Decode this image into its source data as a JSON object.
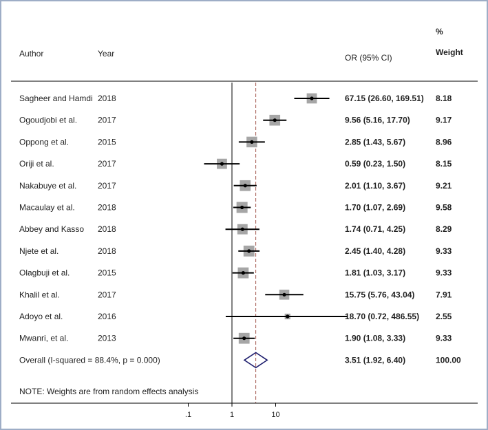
{
  "chart_data": {
    "type": "forest",
    "columns": {
      "author": "Author",
      "year": "Year",
      "or": "OR (95% CI)",
      "weight_line1": "%",
      "weight_line2": "Weight"
    },
    "x_scale": "log",
    "x_ticks": [
      0.1,
      1,
      10
    ],
    "x_tick_labels": [
      ".1",
      "1",
      "10"
    ],
    "null_line": 1,
    "pooled_line": 3.51,
    "studies": [
      {
        "author": "Sagheer and Hamdi",
        "year": "2018",
        "or": 67.15,
        "lo": 26.6,
        "hi": 169.51,
        "or_text": "67.15 (26.60, 169.51)",
        "weight": "8.18"
      },
      {
        "author": "Ogoudjobi et al.",
        "year": "2017",
        "or": 9.56,
        "lo": 5.16,
        "hi": 17.7,
        "or_text": "9.56 (5.16, 17.70)",
        "weight": "9.17"
      },
      {
        "author": "Oppong et al.",
        "year": "2015",
        "or": 2.85,
        "lo": 1.43,
        "hi": 5.67,
        "or_text": "2.85 (1.43, 5.67)",
        "weight": "8.96"
      },
      {
        "author": "Oriji et al.",
        "year": "2017",
        "or": 0.59,
        "lo": 0.23,
        "hi": 1.5,
        "or_text": "0.59 (0.23, 1.50)",
        "weight": "8.15"
      },
      {
        "author": "Nakabuye et al.",
        "year": "2017",
        "or": 2.01,
        "lo": 1.1,
        "hi": 3.67,
        "or_text": "2.01 (1.10, 3.67)",
        "weight": "9.21"
      },
      {
        "author": "Macaulay et al.",
        "year": "2018",
        "or": 1.7,
        "lo": 1.07,
        "hi": 2.69,
        "or_text": "1.70 (1.07, 2.69)",
        "weight": "9.58"
      },
      {
        "author": "Abbey and Kasso",
        "year": "2018",
        "or": 1.74,
        "lo": 0.71,
        "hi": 4.25,
        "or_text": "1.74 (0.71, 4.25)",
        "weight": "8.29"
      },
      {
        "author": "Njete et al.",
        "year": "2018",
        "or": 2.45,
        "lo": 1.4,
        "hi": 4.28,
        "or_text": "2.45 (1.40, 4.28)",
        "weight": "9.33"
      },
      {
        "author": "Olagbuji et al.",
        "year": "2015",
        "or": 1.81,
        "lo": 1.03,
        "hi": 3.17,
        "or_text": "1.81 (1.03, 3.17)",
        "weight": "9.33"
      },
      {
        "author": "Khalil  et al.",
        "year": "2017",
        "or": 15.75,
        "lo": 5.76,
        "hi": 43.04,
        "or_text": "15.75 (5.76, 43.04)",
        "weight": "7.91"
      },
      {
        "author": "Adoyo et al.",
        "year": "2016",
        "or": 18.7,
        "lo": 0.72,
        "hi": 486.55,
        "or_text": "18.70 (0.72, 486.55)",
        "weight": "2.55"
      },
      {
        "author": "Mwanri, et al.",
        "year": "2013",
        "or": 1.9,
        "lo": 1.08,
        "hi": 3.33,
        "or_text": "1.90 (1.08, 3.33)",
        "weight": "9.33"
      }
    ],
    "overall": {
      "label": "Overall (I-squared = 88.4%, p = 0.000)",
      "or": 3.51,
      "lo": 1.92,
      "hi": 6.4,
      "or_text": "3.51 (1.92, 6.40)",
      "weight": "100.00"
    },
    "note": "NOTE: Weights are from random effects analysis"
  },
  "colors": {
    "line": "#000000",
    "box": "#a6a6a6",
    "pooled_dash": "#a0524a",
    "diamond": "#1f1f6e",
    "frame": "#9eadc6"
  }
}
